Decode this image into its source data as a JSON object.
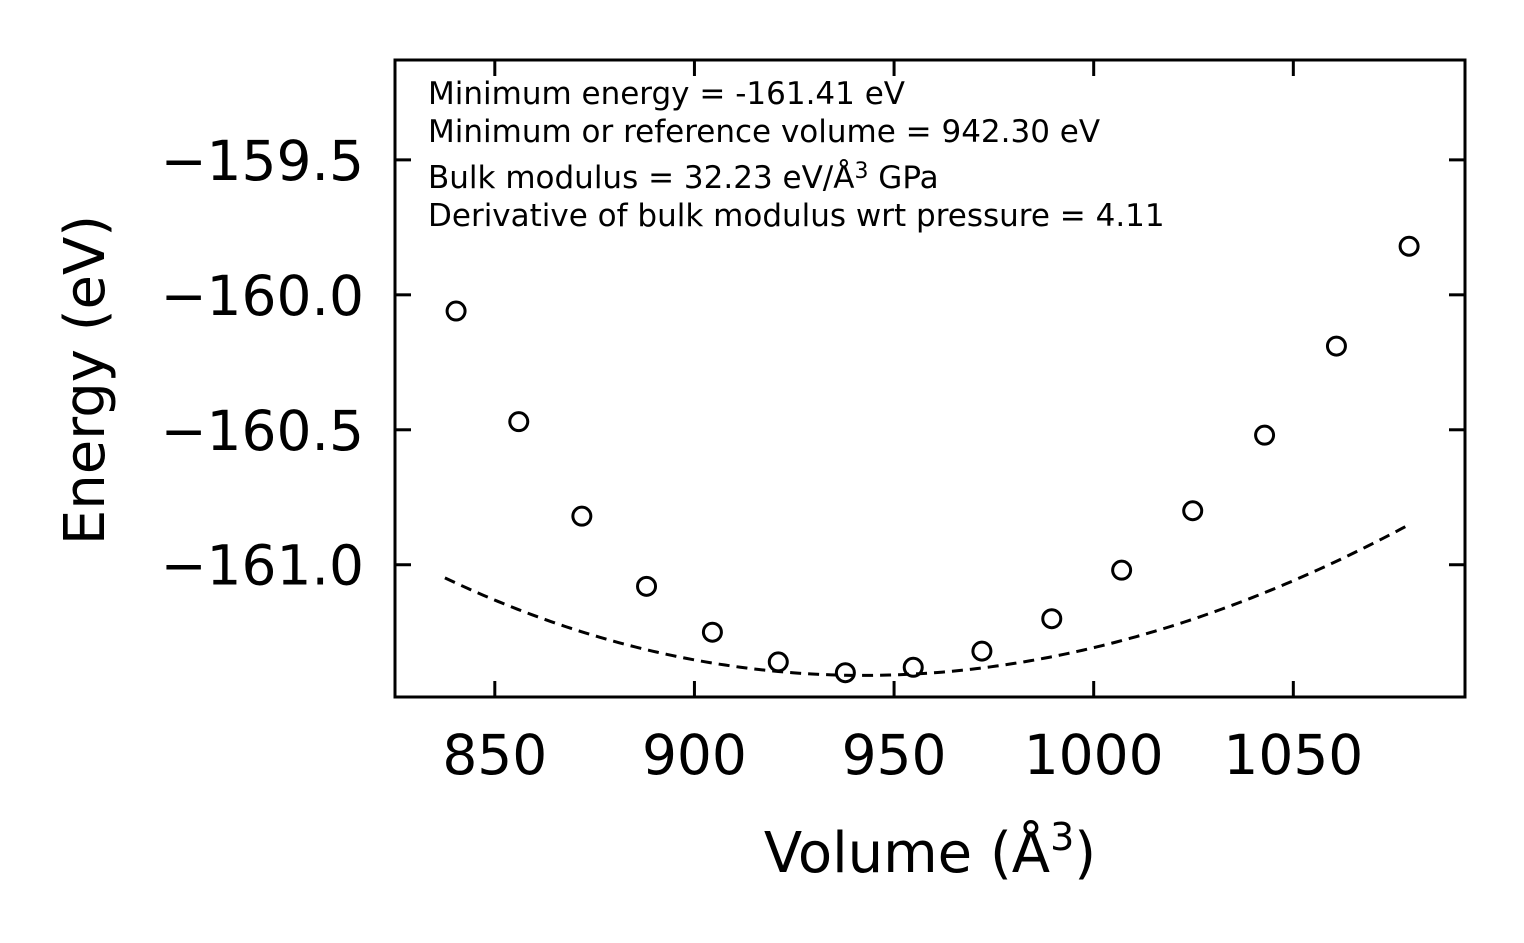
{
  "chart_data": {
    "type": "scatter",
    "xlabel": "Volume (Å",
    "xlabel_sup": "3",
    "xlabel_close": ")",
    "ylabel": "Energy (eV)",
    "xlim": [
      825,
      1093
    ],
    "ylim": [
      -161.49,
      -159.13
    ],
    "xticks": [
      850,
      900,
      950,
      1000,
      1050
    ],
    "xtick_labels": [
      "850",
      "900",
      "950",
      "1000",
      "1050"
    ],
    "yticks": [
      -159.5,
      -160.0,
      -160.5,
      -161.0
    ],
    "ytick_labels": [
      "−159.5",
      "−160.0",
      "−160.5",
      "−161.0"
    ],
    "grid": false,
    "annotations": [
      {
        "text": "Minimum energy = -161.41 eV"
      },
      {
        "text": "Minimum or reference volume = 942.30 eV"
      },
      {
        "text": "Bulk modulus = 32.23 eV/Å",
        "sup": "3",
        "suffix": " GPa"
      },
      {
        "text": "Derivative of bulk modulus wrt pressure = 4.11"
      }
    ],
    "series": [
      {
        "name": "data",
        "style": "open-circle",
        "color": "#000000",
        "x": [
          840.3,
          856.0,
          871.8,
          888.0,
          904.5,
          921.0,
          937.8,
          954.8,
          972.0,
          989.5,
          1007.0,
          1024.8,
          1042.8,
          1060.8,
          1079.0
        ],
        "y": [
          -160.06,
          -160.47,
          -160.82,
          -161.08,
          -161.25,
          -161.36,
          -161.4,
          -161.38,
          -161.32,
          -161.2,
          -161.02,
          -160.8,
          -160.52,
          -160.19,
          -159.82
        ]
      },
      {
        "name": "fit",
        "style": "dashed-line",
        "color": "#000000",
        "fit": {
          "E0": -161.41,
          "V0": 942.3,
          "curvature": 3.16e-05,
          "cubic": -1.25e-08
        },
        "x_range": [
          837.5,
          1079.5
        ]
      }
    ]
  }
}
